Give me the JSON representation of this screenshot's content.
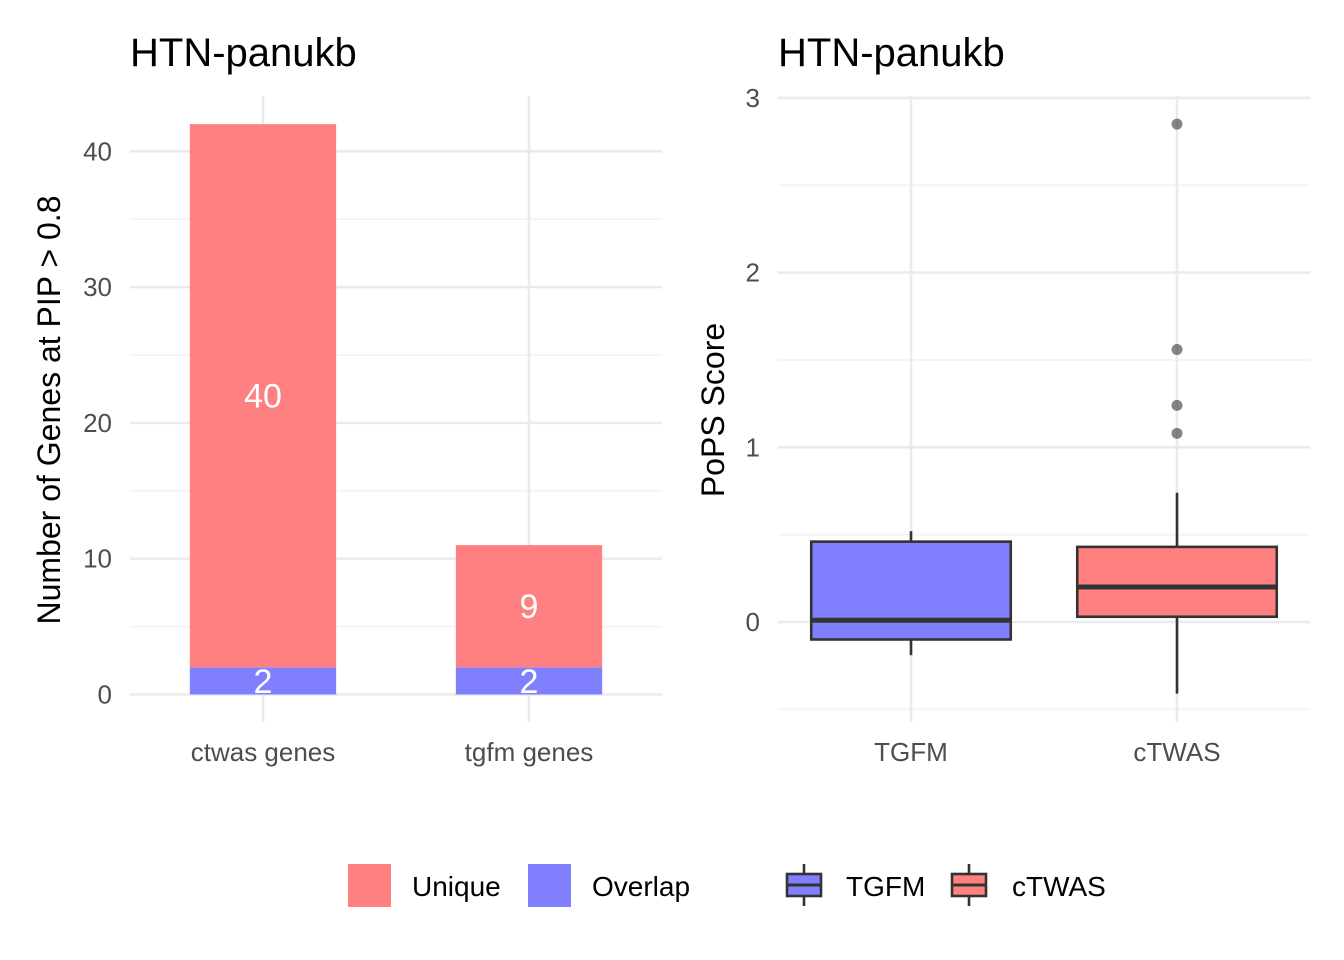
{
  "chart_data": [
    {
      "type": "bar",
      "stacked": true,
      "title": "HTN-panukb",
      "xlabel": "",
      "ylabel": "Number of Genes at PIP > 0.8",
      "ylim": [
        0,
        43
      ],
      "yticks": [
        0,
        10,
        20,
        30,
        40
      ],
      "grid": true,
      "categories": [
        "ctwas genes",
        "tgfm genes"
      ],
      "series": [
        {
          "name": "Overlap",
          "color": "#8080FF",
          "values": [
            2,
            2
          ]
        },
        {
          "name": "Unique",
          "color": "#FF8080",
          "values": [
            40,
            9
          ]
        }
      ],
      "data_labels": [
        {
          "category": "ctwas genes",
          "series": "Unique",
          "text": "40"
        },
        {
          "category": "ctwas genes",
          "series": "Overlap",
          "text": "2"
        },
        {
          "category": "tgfm genes",
          "series": "Unique",
          "text": "9"
        },
        {
          "category": "tgfm genes",
          "series": "Overlap",
          "text": "2"
        }
      ],
      "legend": {
        "position": "bottom",
        "entries": [
          "Unique",
          "Overlap"
        ]
      }
    },
    {
      "type": "box",
      "title": "HTN-panukb",
      "xlabel": "",
      "ylabel": "PoPS Score",
      "ylim": [
        -0.5,
        3.05
      ],
      "yticks": [
        0,
        1,
        2,
        3
      ],
      "grid": true,
      "categories": [
        "TGFM",
        "cTWAS"
      ],
      "boxes": [
        {
          "name": "TGFM",
          "color": "#8080FF",
          "whisker_low": -0.19,
          "q1": -0.1,
          "median": 0.01,
          "q3": 0.46,
          "whisker_high": 0.52,
          "outliers": []
        },
        {
          "name": "cTWAS",
          "color": "#FF8080",
          "whisker_low": -0.41,
          "q1": 0.03,
          "median": 0.2,
          "q3": 0.43,
          "whisker_high": 0.74,
          "outliers": [
            1.08,
            1.24,
            1.56,
            2.85
          ]
        }
      ],
      "legend": {
        "position": "bottom",
        "entries": [
          "TGFM",
          "cTWAS"
        ]
      }
    }
  ]
}
